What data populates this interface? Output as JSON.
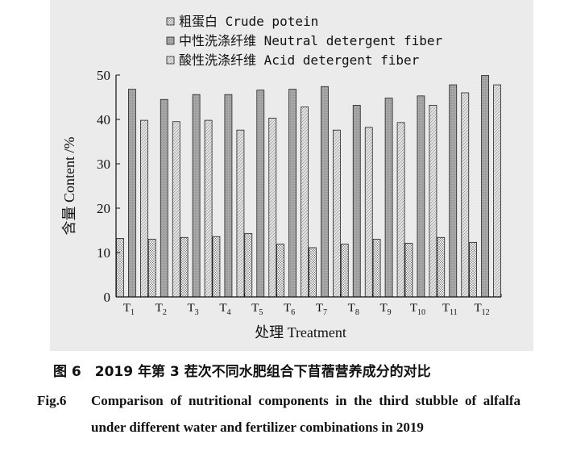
{
  "chart_data": {
    "type": "bar",
    "categories": [
      "T1",
      "T2",
      "T3",
      "T4",
      "T5",
      "T6",
      "T7",
      "T8",
      "T9",
      "T10",
      "T11",
      "T12"
    ],
    "series": [
      {
        "name": "粗蛋白 Crude potein",
        "values": [
          13.2,
          13.0,
          13.4,
          13.6,
          14.3,
          11.9,
          11.1,
          11.9,
          13.0,
          12.1,
          13.4,
          12.3
        ]
      },
      {
        "name": "中性洗涤纤维 Neutral detergent fiber",
        "values": [
          46.8,
          44.5,
          45.6,
          45.6,
          46.6,
          46.8,
          47.4,
          43.2,
          44.8,
          45.3,
          47.8,
          49.9
        ]
      },
      {
        "name": "酸性洗涤纤维 Acid detergent fiber",
        "values": [
          39.8,
          39.5,
          39.8,
          37.6,
          40.3,
          42.8,
          37.6,
          38.2,
          39.3,
          43.2,
          46.0,
          47.8
        ]
      }
    ],
    "xlabel": "处理 Treatment",
    "ylabel": "含量 Content /%",
    "ylim": [
      0,
      50
    ],
    "yticks": [
      0,
      10,
      20,
      30,
      40,
      50
    ],
    "legend_position": "top-left",
    "grid": false
  },
  "caption": {
    "cn": "图 6　2019 年第 3 茬次不同水肥组合下苜蓿营养成分的对比",
    "en_label": "Fig.6",
    "en_text": "Comparison of nutritional components in the third stubble of alfalfa under different water and fertilizer combinations in 2019"
  }
}
